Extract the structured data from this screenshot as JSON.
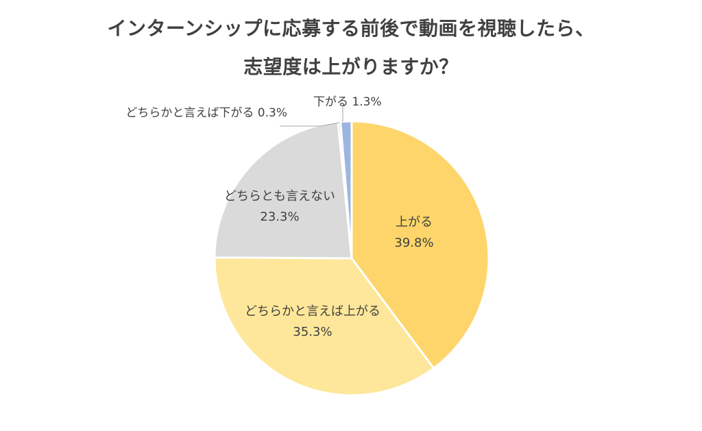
{
  "title": {
    "line1": "インターンシップに応募する前後で動画を視聴したら、",
    "line2": "志望度は上がりますか？"
  },
  "chart_data": {
    "type": "pie",
    "title": "インターンシップに応募する前後で動画を視聴したら、志望度は上がりますか？",
    "slices": [
      {
        "name": "上がる",
        "value": 39.8,
        "label": "39.8%",
        "color": "#FDD56A"
      },
      {
        "name": "どちらかと言えば上がる",
        "value": 35.3,
        "label": "35.3%",
        "color": "#FEE79A"
      },
      {
        "name": "どちらとも言えない",
        "value": 23.3,
        "label": "23.3%",
        "color": "#DADADA"
      },
      {
        "name": "どちらかと言えば下がる",
        "value": 0.3,
        "label": "0.3%",
        "color": "#C7D3E8"
      },
      {
        "name": "下がる",
        "value": 1.3,
        "label": "1.3%",
        "color": "#9CB6DF"
      }
    ],
    "start_angle_deg": 0,
    "direction": "clockwise",
    "label_color": "#404040",
    "leader_line_color": "#A6A6A6"
  }
}
